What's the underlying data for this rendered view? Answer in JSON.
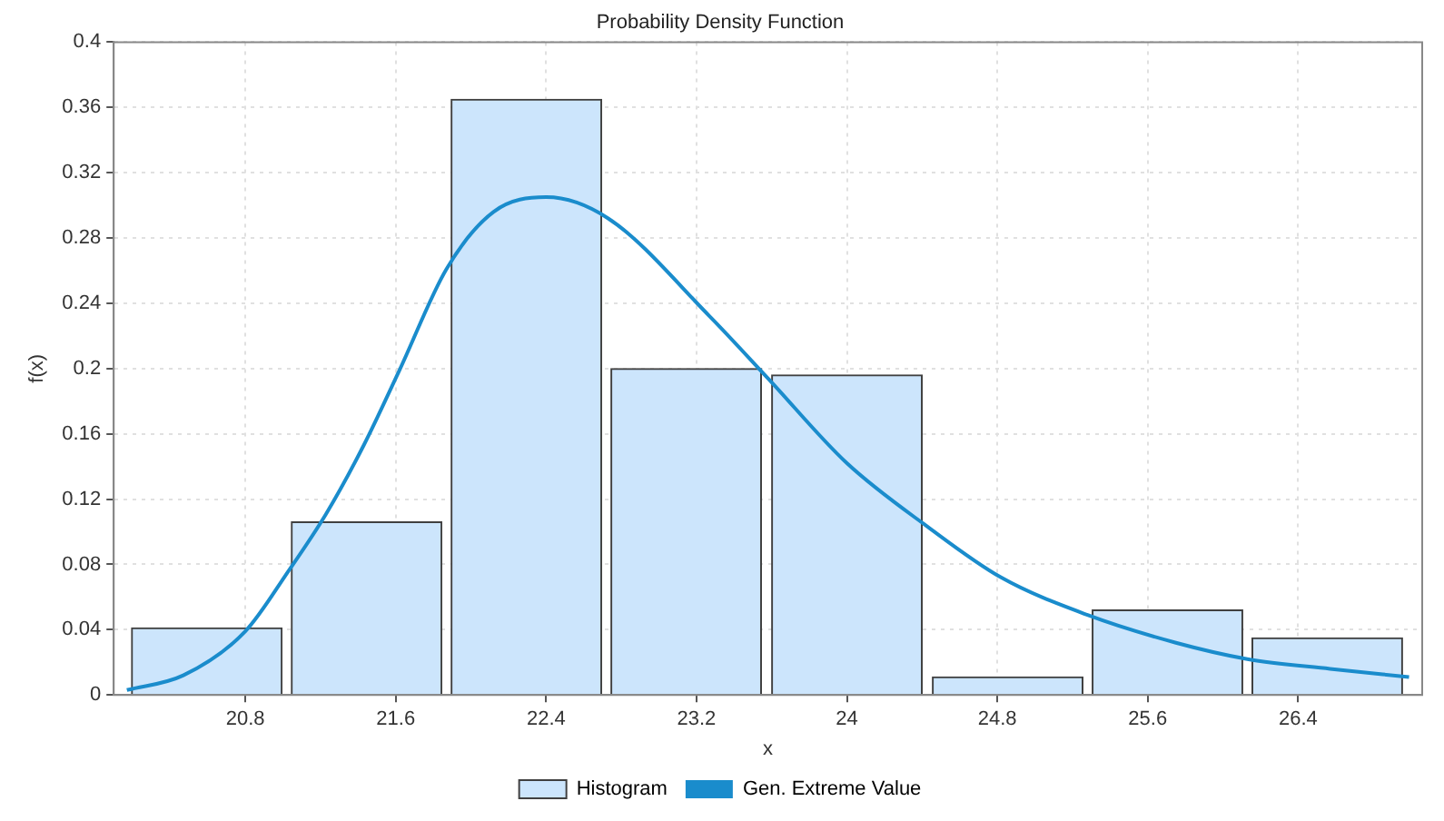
{
  "chart_data": {
    "type": "histogram",
    "title": "Probability Density Function",
    "xlabel": "x",
    "ylabel": "f(x)",
    "bins": [
      20.17,
      21.02,
      21.87,
      22.72,
      23.57,
      24.43,
      25.28,
      26.13,
      26.98
    ],
    "series": [
      {
        "name": "Histogram",
        "color": "#cce5fc",
        "values": [
          0.041,
          0.106,
          0.365,
          0.2,
          0.196,
          0.011,
          0.052,
          0.035
        ]
      },
      {
        "name": "Gen. Extreme Value",
        "type": "line",
        "color": "#1a8ccc",
        "x": [
          20.17,
          20.47,
          20.8,
          21.03,
          21.23,
          21.43,
          21.62,
          21.87,
          22.12,
          22.4,
          22.73,
          23.27,
          23.58,
          24.0,
          24.43,
          24.82,
          25.28,
          25.75,
          26.13,
          26.57,
          26.99
        ],
        "values": [
          0.003,
          0.012,
          0.039,
          0.076,
          0.111,
          0.153,
          0.199,
          0.261,
          0.296,
          0.305,
          0.292,
          0.232,
          0.194,
          0.142,
          0.103,
          0.072,
          0.049,
          0.032,
          0.022,
          0.016,
          0.011
        ]
      }
    ],
    "xlim": [
      20.1,
      27.06
    ],
    "ylim": [
      0,
      0.4
    ],
    "xticks": [
      20.8,
      21.6,
      22.4,
      23.2,
      24,
      24.8,
      25.6,
      26.4
    ],
    "yticks": [
      0,
      0.04,
      0.08,
      0.12,
      0.16,
      0.2,
      0.24,
      0.28,
      0.32,
      0.36,
      0.4
    ],
    "grid": true,
    "legend": "bottom",
    "marker": "none",
    "line_style": "solid"
  }
}
